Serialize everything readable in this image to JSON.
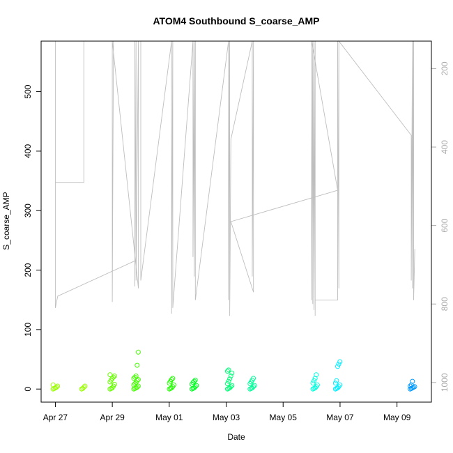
{
  "chart_data": {
    "type": "scatter",
    "title": "ATOM4 Southbound S_coarse_AMP",
    "xlabel": "Date",
    "ylabel": "S_coarse_AMP",
    "x_ticks": [
      {
        "date": "2024-04-27",
        "label": "Apr 27"
      },
      {
        "date": "2024-04-29",
        "label": "Apr 29"
      },
      {
        "date": "2024-05-01",
        "label": "May 01"
      },
      {
        "date": "2024-05-03",
        "label": "May 03"
      },
      {
        "date": "2024-05-05",
        "label": "May 05"
      },
      {
        "date": "2024-05-07",
        "label": "May 07"
      },
      {
        "date": "2024-05-09",
        "label": "May 09"
      }
    ],
    "xlim": [
      "2024-04-26 12:00",
      "2024-05-10 05:00"
    ],
    "ylim": [
      -22,
      585
    ],
    "y_ticks": [
      0,
      100,
      200,
      300,
      400,
      500
    ],
    "y2lim": [
      1050,
      130
    ],
    "y2_ticks": [
      200,
      400,
      600,
      800,
      1000
    ],
    "grid": false,
    "legend": "none",
    "line_color": "#bebebe",
    "right_axis_color": "#aaaaaa",
    "series": [
      {
        "role": "amplitude-points",
        "marker": "open-circle",
        "clusters": [
          {
            "t": "2024-04-27 00:00",
            "color": "#99ff00",
            "values": [
              0,
              1,
              2,
              3,
              5,
              7
            ]
          },
          {
            "t": "2024-04-28 00:00",
            "color": "#99ff00",
            "values": [
              0,
              1,
              3,
              5
            ]
          },
          {
            "t": "2024-04-29 00:00",
            "color": "#66ff00",
            "values": [
              0,
              1,
              2,
              5,
              8,
              12,
              15,
              18,
              20,
              22,
              24
            ]
          },
          {
            "t": "2024-04-29 20:00",
            "color": "#44ff00",
            "values": [
              0,
              1,
              2,
              3,
              5,
              7,
              9,
              11,
              14,
              16,
              18,
              20,
              22,
              40,
              62
            ]
          },
          {
            "t": "2024-05-01 02:00",
            "color": "#22ff00",
            "values": [
              0,
              1,
              2,
              4,
              7,
              10,
              13,
              16,
              18
            ]
          },
          {
            "t": "2024-05-01 21:00",
            "color": "#00ff22",
            "values": [
              0,
              1,
              2,
              4,
              6,
              8,
              11,
              13,
              15
            ]
          },
          {
            "t": "2024-05-03 03:00",
            "color": "#00ff77",
            "values": [
              0,
              1,
              2,
              4,
              6,
              9,
              13,
              17,
              22,
              27,
              30,
              32
            ]
          },
          {
            "t": "2024-05-03 22:00",
            "color": "#00ff99",
            "values": [
              0,
              1,
              2,
              4,
              6,
              9,
              12,
              15,
              18
            ]
          },
          {
            "t": "2024-05-06 03:00",
            "color": "#00ffdd",
            "values": [
              0,
              1,
              2,
              4,
              7,
              10,
              14,
              18,
              24
            ]
          },
          {
            "t": "2024-05-06 22:00",
            "color": "#00eeff",
            "values": [
              0,
              1,
              2,
              4,
              7,
              10,
              14,
              38,
              42,
              46
            ]
          },
          {
            "t": "2024-05-09 13:00",
            "color": "#0099ff",
            "values": [
              0,
              1,
              2,
              3,
              4,
              5,
              7,
              13
            ]
          }
        ]
      },
      {
        "role": "right-axis-trace",
        "points": [
          [
            "2024-04-27 00:00",
            205
          ],
          [
            "2024-04-27 00:00",
            490
          ],
          [
            "2024-04-28 00:00",
            490
          ],
          [
            "2024-04-28 00:00",
            130
          ],
          [
            "2024-04-27 00:00",
            130
          ],
          [
            "2024-04-27 00:00",
            810
          ],
          [
            "2024-04-27 02:00",
            780
          ],
          [
            "2024-04-29 19:00",
            690
          ],
          [
            "2024-04-29 19:00",
            130
          ],
          [
            "2024-04-29 19:00",
            755
          ],
          [
            "2024-04-29 20:00",
            130
          ],
          [
            "2024-04-29 20:00",
            740
          ],
          [
            "2024-04-29 22:00",
            130
          ],
          [
            "2024-04-29 22:00",
            760
          ],
          [
            "2024-04-29 00:00",
            130
          ],
          [
            "2024-04-29 00:00",
            795
          ],
          [
            "2024-04-29 01:00",
            130
          ],
          [
            "2024-04-30 00:00",
            130
          ],
          [
            "2024-04-30 00:00",
            740
          ],
          [
            "2024-05-01 02:00",
            130
          ],
          [
            "2024-05-01 02:00",
            825
          ],
          [
            "2024-05-01 03:00",
            130
          ],
          [
            "2024-05-01 03:00",
            810
          ],
          [
            "2024-05-01 20:00",
            130
          ],
          [
            "2024-05-01 20:00",
            680
          ],
          [
            "2024-05-01 21:00",
            130
          ],
          [
            "2024-05-01 21:00",
            730
          ],
          [
            "2024-05-01 22:00",
            130
          ],
          [
            "2024-05-01 22:00",
            790
          ],
          [
            "2024-05-03 02:00",
            130
          ],
          [
            "2024-05-03 02:00",
            790
          ],
          [
            "2024-05-03 03:00",
            130
          ],
          [
            "2024-05-03 03:00",
            830
          ],
          [
            "2024-05-03 04:00",
            380
          ],
          [
            "2024-05-03 22:00",
            130
          ],
          [
            "2024-05-03 22:00",
            730
          ],
          [
            "2024-05-03 23:00",
            130
          ],
          [
            "2024-05-03 23:00",
            770
          ],
          [
            "2024-05-03 04:00",
            590
          ],
          [
            "2024-05-06 22:00",
            510
          ],
          [
            "2024-05-06 00:00",
            130
          ],
          [
            "2024-05-06 00:00",
            790
          ],
          [
            "2024-05-06 01:00",
            130
          ],
          [
            "2024-05-06 01:00",
            800
          ],
          [
            "2024-05-06 02:00",
            130
          ],
          [
            "2024-05-06 02:00",
            815
          ],
          [
            "2024-05-06 03:00",
            130
          ],
          [
            "2024-05-06 03:00",
            830
          ],
          [
            "2024-05-06 03:00",
            790
          ],
          [
            "2024-05-06 22:00",
            790
          ],
          [
            "2024-05-06 22:00",
            130
          ],
          [
            "2024-05-06 23:00",
            760
          ],
          [
            "2024-05-06 23:00",
            130
          ],
          [
            "2024-05-09 12:00",
            370
          ],
          [
            "2024-05-09 12:00",
            740
          ],
          [
            "2024-05-09 13:00",
            130
          ],
          [
            "2024-05-09 13:00",
            760
          ],
          [
            "2024-05-09 14:00",
            130
          ],
          [
            "2024-05-09 14:00",
            790
          ],
          [
            "2024-05-09 15:00",
            660
          ]
        ]
      }
    ]
  }
}
